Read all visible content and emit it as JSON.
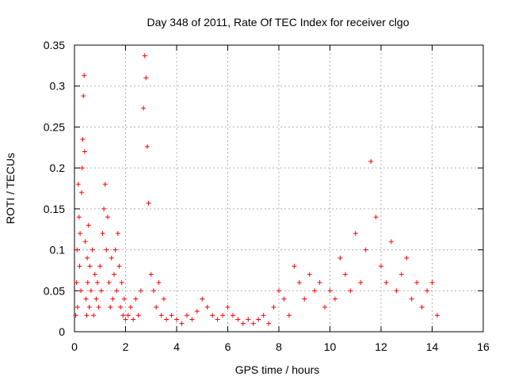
{
  "chart_data": {
    "type": "scatter",
    "title": "Day 348 of 2011, Rate Of TEC Index for receiver clgo",
    "xlabel": "GPS time / hours",
    "ylabel": "ROTI / TECUs",
    "xlim": [
      0,
      16
    ],
    "ylim": [
      0,
      0.35
    ],
    "xticks": [
      0,
      2,
      4,
      6,
      8,
      10,
      12,
      14,
      16
    ],
    "yticks": [
      0,
      0.05,
      0.1,
      0.15,
      0.2,
      0.25,
      0.3,
      0.35
    ],
    "xtick_labels": [
      "0",
      "2",
      "4",
      "6",
      "8",
      "10",
      "12",
      "14",
      "16"
    ],
    "ytick_labels": [
      "0",
      "0.05",
      "0.1",
      "0.15",
      "0.2",
      "0.25",
      "0.3",
      "0.35"
    ],
    "grid": true,
    "series": [
      {
        "name": "ROTI",
        "color": "#ff0000",
        "marker": "plus",
        "x": [
          0.05,
          0.08,
          0.1,
          0.12,
          0.15,
          0.18,
          0.2,
          0.22,
          0.25,
          0.28,
          0.3,
          0.32,
          0.35,
          0.38,
          0.4,
          0.42,
          0.45,
          0.48,
          0.5,
          0.52,
          0.55,
          0.58,
          0.6,
          0.65,
          0.7,
          0.75,
          0.8,
          0.85,
          0.9,
          0.95,
          1.0,
          1.05,
          1.1,
          1.15,
          1.2,
          1.25,
          1.3,
          1.35,
          1.4,
          1.45,
          1.5,
          1.55,
          1.6,
          1.65,
          1.7,
          1.75,
          1.8,
          1.85,
          1.9,
          1.95,
          2.0,
          2.1,
          2.2,
          2.3,
          2.4,
          2.5,
          2.6,
          2.7,
          2.75,
          2.8,
          2.85,
          2.9,
          3.0,
          3.1,
          3.2,
          3.3,
          3.4,
          3.5,
          3.6,
          3.8,
          4.0,
          4.2,
          4.4,
          4.6,
          4.8,
          5.0,
          5.2,
          5.4,
          5.6,
          5.8,
          6.0,
          6.2,
          6.4,
          6.6,
          6.8,
          7.0,
          7.2,
          7.4,
          7.6,
          7.8,
          8.0,
          8.2,
          8.4,
          8.6,
          8.8,
          9.0,
          9.2,
          9.4,
          9.6,
          9.8,
          10.0,
          10.2,
          10.4,
          10.6,
          10.8,
          11.0,
          11.2,
          11.4,
          11.6,
          11.8,
          12.0,
          12.2,
          12.4,
          12.6,
          12.8,
          13.0,
          13.2,
          13.4,
          13.6,
          13.8,
          14.0,
          14.2
        ],
        "y": [
          0.02,
          0.06,
          0.1,
          0.03,
          0.18,
          0.14,
          0.08,
          0.12,
          0.05,
          0.17,
          0.2,
          0.235,
          0.288,
          0.313,
          0.22,
          0.11,
          0.04,
          0.02,
          0.09,
          0.06,
          0.13,
          0.03,
          0.08,
          0.05,
          0.1,
          0.02,
          0.07,
          0.04,
          0.06,
          0.03,
          0.08,
          0.05,
          0.12,
          0.15,
          0.18,
          0.1,
          0.14,
          0.06,
          0.03,
          0.09,
          0.04,
          0.07,
          0.1,
          0.05,
          0.12,
          0.08,
          0.03,
          0.06,
          0.02,
          0.04,
          0.015,
          0.02,
          0.03,
          0.015,
          0.04,
          0.02,
          0.05,
          0.273,
          0.337,
          0.31,
          0.226,
          0.157,
          0.07,
          0.05,
          0.03,
          0.06,
          0.02,
          0.04,
          0.015,
          0.02,
          0.015,
          0.01,
          0.02,
          0.015,
          0.025,
          0.04,
          0.03,
          0.02,
          0.015,
          0.02,
          0.03,
          0.02,
          0.015,
          0.01,
          0.015,
          0.01,
          0.015,
          0.02,
          0.01,
          0.03,
          0.05,
          0.04,
          0.02,
          0.08,
          0.06,
          0.04,
          0.07,
          0.05,
          0.06,
          0.03,
          0.05,
          0.04,
          0.09,
          0.07,
          0.05,
          0.12,
          0.06,
          0.1,
          0.208,
          0.14,
          0.08,
          0.06,
          0.11,
          0.05,
          0.07,
          0.09,
          0.04,
          0.06,
          0.03,
          0.05,
          0.06,
          0.02
        ]
      }
    ]
  }
}
